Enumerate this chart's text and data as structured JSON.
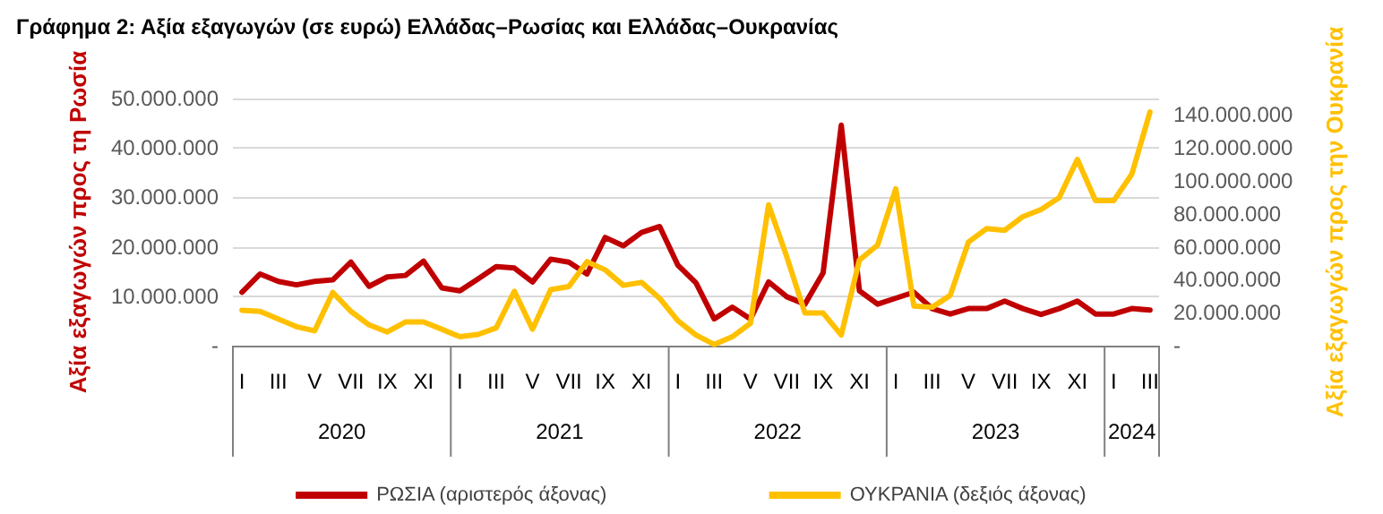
{
  "chart_data": {
    "type": "line",
    "title": "Γράφημα 2: Αξία εξαγωγών (σε ευρώ) Ελλάδας–Ρωσίας και Ελλάδας–Ουκρανίας",
    "ylabel": "Αξία εξαγωγών προς τη Ρωσία",
    "y2label": "Αξία εξαγωγών προς την Ουκρανία",
    "categories": [
      "I",
      null,
      "III",
      null,
      "V",
      null,
      "VII",
      null,
      "IX",
      null,
      "XI",
      null,
      "I",
      null,
      "III",
      null,
      "V",
      null,
      "VII",
      null,
      "IX",
      null,
      "XI",
      null,
      "I",
      null,
      "III",
      null,
      "V",
      null,
      "VII",
      null,
      "IX",
      null,
      "XI",
      null,
      "I",
      null,
      "III",
      null,
      "V",
      null,
      "VII",
      null,
      "IX",
      null,
      "XI",
      null,
      "I",
      null,
      "III"
    ],
    "annotations": [
      "2020",
      "2021",
      "2022",
      "2023",
      "2024"
    ],
    "series": [
      {
        "name": "ΡΩΣΙΑ (αριστερός άξονας)",
        "color": "#c00000",
        "values": [
          10800000,
          14500000,
          13000000,
          12300000,
          13000000,
          13300000,
          16900000,
          12000000,
          13900000,
          14200000,
          17100000,
          11700000,
          11100000,
          13500000,
          16000000,
          15700000,
          12900000,
          17500000,
          16900000,
          14500000,
          21900000,
          20200000,
          22900000,
          24100000,
          16300000,
          12700000,
          5400000,
          7800000,
          5400000,
          12900000,
          9900000,
          8400000,
          14700000,
          44600000,
          11100000,
          8400000,
          9600000,
          10800000,
          7500000,
          6400000,
          7500000,
          7500000,
          9000000,
          7500000,
          6300000,
          7500000,
          9000000,
          6400000,
          6400000,
          7500000,
          7200000
        ]
      },
      {
        "name": "ΟΥΚΡΑΝΙΑ (δεξιός άξονας)",
        "color": "#ffc000",
        "axis": "y2",
        "values": [
          21500000,
          20800000,
          16200000,
          11500000,
          9000000,
          32300000,
          20800000,
          12600000,
          8300000,
          14400000,
          14400000,
          10000000,
          5400000,
          6800000,
          10800000,
          33000000,
          10000000,
          34000000,
          35900000,
          51000000,
          46000000,
          36600000,
          38400000,
          28700000,
          15100000,
          6500000,
          700000,
          5400000,
          13600000,
          85500000,
          53900000,
          19800000,
          19800000,
          6500000,
          52000000,
          61000000,
          95200000,
          24000000,
          23300000,
          30500000,
          62800000,
          71000000,
          70000000,
          78300000,
          82600000,
          89800000,
          113000000,
          88000000,
          88000000,
          104100000,
          141800000
        ]
      }
    ],
    "ylim": [
      0,
      50000000
    ],
    "yticks": [
      {
        "value": 0,
        "label": "-"
      },
      {
        "value": 10000000,
        "label": "10.000.000"
      },
      {
        "value": 20000000,
        "label": "20.000.000"
      },
      {
        "value": 30000000,
        "label": "30.000.000"
      },
      {
        "value": 40000000,
        "label": "40.000.000"
      },
      {
        "value": 50000000,
        "label": "50.000.000"
      }
    ],
    "y2lim": [
      0,
      150000000
    ],
    "y2ticks": [
      {
        "value": 0,
        "label": "-"
      },
      {
        "value": 20000000,
        "label": "20.000.000"
      },
      {
        "value": 40000000,
        "label": "40.000.000"
      },
      {
        "value": 60000000,
        "label": "60.000.000"
      },
      {
        "value": 80000000,
        "label": "80.000.000"
      },
      {
        "value": 100000000,
        "label": "100.000.000"
      },
      {
        "value": 120000000,
        "label": "120.000.000"
      },
      {
        "value": 140000000,
        "label": "140.000.000"
      }
    ],
    "grid": "y",
    "legend": "bottom",
    "marker": "none",
    "line_style": "solid"
  }
}
